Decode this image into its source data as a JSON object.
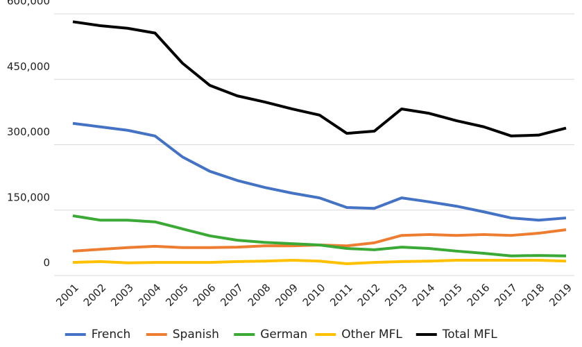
{
  "chart_data": {
    "type": "line",
    "categories": [
      "2001",
      "2002",
      "2003",
      "2004",
      "2005",
      "2006",
      "2007",
      "2008",
      "2009",
      "2010",
      "2011",
      "2012",
      "2013",
      "2014",
      "2015",
      "2016",
      "2017",
      "2018",
      "2019"
    ],
    "series": [
      {
        "name": "French",
        "color": "#4472c4",
        "values": [
          349000,
          341000,
          333000,
          320000,
          272000,
          239000,
          218000,
          202000,
          189000,
          178000,
          156000,
          154000,
          178000,
          169000,
          159000,
          146000,
          132000,
          127000,
          132000
        ]
      },
      {
        "name": "Spanish",
        "color": "#ed7d31",
        "values": [
          56000,
          60000,
          64000,
          67000,
          64000,
          64000,
          65000,
          68000,
          68000,
          70000,
          68000,
          75000,
          92000,
          94000,
          92000,
          94000,
          92000,
          97000,
          105000
        ]
      },
      {
        "name": "German",
        "color": "#3aa935",
        "values": [
          137000,
          127000,
          127000,
          123000,
          107000,
          91000,
          81000,
          76000,
          73000,
          70000,
          62000,
          59000,
          65000,
          62000,
          56000,
          51000,
          45000,
          46000,
          45000
        ]
      },
      {
        "name": "Other MFL",
        "color": "#ffc000",
        "values": [
          30000,
          32000,
          29000,
          30000,
          30000,
          30000,
          32000,
          33000,
          35000,
          33000,
          27000,
          30000,
          32000,
          33000,
          35000,
          35000,
          35000,
          35000,
          33000
        ]
      },
      {
        "name": "Total MFL",
        "color": "#000000",
        "values": [
          582000,
          573000,
          567000,
          556000,
          487000,
          436000,
          412000,
          398000,
          382000,
          368000,
          326000,
          331000,
          382000,
          372000,
          355000,
          341000,
          320000,
          322000,
          338000
        ]
      }
    ],
    "ylim": [
      0,
      600000
    ],
    "yticks": [
      0,
      {
        "value": 150000,
        "label": "150,000"
      },
      {
        "value": 300000,
        "label": "300,000"
      },
      {
        "value": 450000,
        "label": "450,000"
      },
      {
        "value": 600000,
        "label": "600,000"
      }
    ],
    "grid": true,
    "legend": "bottom"
  }
}
